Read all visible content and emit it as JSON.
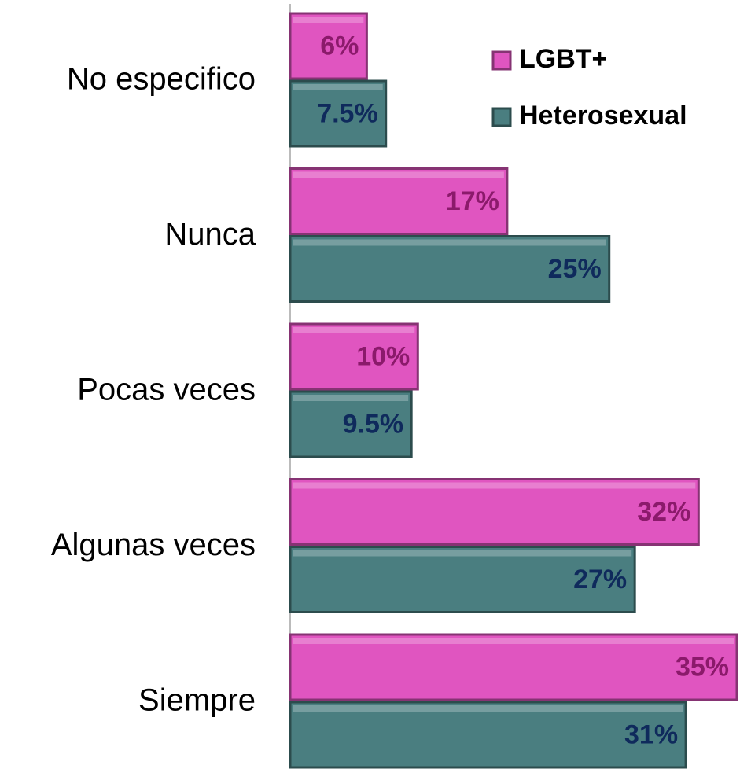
{
  "chart_data": {
    "type": "bar",
    "orientation": "horizontal",
    "categories": [
      "No especifico",
      "Nunca",
      "Pocas veces",
      "Algunas veces",
      "Siempre"
    ],
    "series": [
      {
        "name": "LGBT+",
        "color": "#e055c0",
        "label_color": "#8b1a6b",
        "values": [
          6,
          17,
          10,
          32,
          35
        ],
        "value_labels": [
          "6%",
          "17%",
          "10%",
          "32%",
          "35%"
        ]
      },
      {
        "name": "Heterosexual",
        "color": "#4a7e80",
        "label_color": "#0f2a5c",
        "values": [
          7.5,
          25,
          9.5,
          27,
          31
        ],
        "value_labels": [
          "7.5%",
          "25%",
          "9.5%",
          "27%",
          "31%"
        ]
      }
    ],
    "legend": "top-right"
  }
}
